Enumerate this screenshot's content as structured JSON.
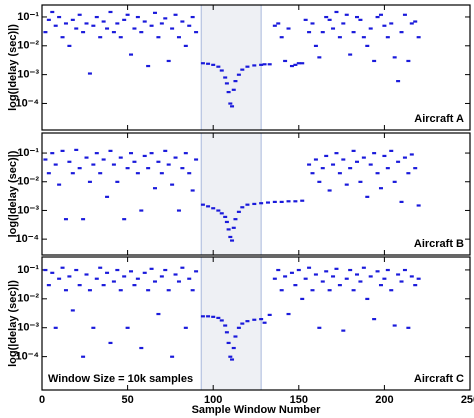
{
  "chart_data": [
    {
      "type": "scatter",
      "ylabel": "log(|delay (sec)|)",
      "annotation": "Aircraft A",
      "color": "#1a1adb",
      "log_y": true,
      "highlight": [
        93,
        128
      ],
      "xlim": [
        0,
        250
      ],
      "xticks": [
        0,
        50,
        100,
        150,
        200,
        250
      ],
      "ylim": [
        1.2e-05,
        0.26
      ],
      "yticks": [
        {
          "value": 0.1,
          "label": "10⁻¹"
        },
        {
          "value": 0.01,
          "label": "10⁻²"
        },
        {
          "value": 0.001,
          "label": "10⁻³"
        },
        {
          "value": 0.0001,
          "label": "10⁻⁴"
        }
      ],
      "x": [
        2,
        4,
        6,
        8,
        10,
        12,
        14,
        16,
        18,
        20,
        22,
        24,
        26,
        28,
        30,
        32,
        34,
        36,
        38,
        40,
        42,
        44,
        46,
        48,
        50,
        52,
        54,
        56,
        58,
        60,
        62,
        64,
        66,
        68,
        70,
        72,
        74,
        76,
        78,
        80,
        82,
        84,
        86,
        88,
        90,
        94,
        97,
        100,
        103,
        105,
        107,
        108,
        109,
        110,
        111,
        112,
        113,
        115,
        117,
        120,
        124,
        128,
        130,
        133,
        136,
        138,
        140,
        142,
        144,
        146,
        148,
        150,
        152,
        154,
        156,
        158,
        160,
        162,
        164,
        166,
        168,
        170,
        172,
        174,
        176,
        178,
        180,
        182,
        184,
        186,
        188,
        190,
        192,
        194,
        196,
        198,
        200,
        202,
        204,
        206,
        208,
        210,
        212,
        214,
        216,
        218,
        220
      ],
      "values": [
        0.03,
        0.08,
        0.15,
        0.05,
        0.1,
        0.02,
        0.06,
        0.01,
        0.08,
        0.04,
        0.12,
        0.03,
        0.06,
        0.0011,
        0.05,
        0.1,
        0.02,
        0.07,
        0.04,
        0.15,
        0.03,
        0.06,
        0.02,
        0.08,
        0.12,
        0.005,
        0.04,
        0.1,
        0.03,
        0.07,
        0.002,
        0.05,
        0.14,
        0.02,
        0.06,
        0.09,
        0.003,
        0.04,
        0.12,
        0.02,
        0.07,
        0.01,
        0.05,
        0.1,
        0.03,
        0.0025,
        0.0024,
        0.0022,
        0.0019,
        0.0014,
        0.0008,
        0.0005,
        0.00025,
        0.0001,
        8e-05,
        0.0003,
        0.0006,
        0.001,
        0.0015,
        0.0019,
        0.0021,
        0.0022,
        0.0023,
        0.0023,
        0.05,
        0.06,
        0.02,
        0.003,
        0.04,
        0.002,
        0.0022,
        0.0025,
        0.0025,
        0.08,
        0.03,
        0.06,
        0.01,
        0.004,
        0.03,
        0.1,
        0.08,
        0.04,
        0.15,
        0.02,
        0.06,
        0.12,
        0.005,
        0.03,
        0.1,
        0.08,
        0.02,
        0.01,
        0.04,
        0.003,
        0.1,
        0.12,
        0.05,
        0.02,
        0.06,
        0.004,
        0.0006,
        0.03,
        0.12,
        0.003,
        0.06,
        0.07,
        0.02
      ]
    },
    {
      "type": "scatter",
      "ylabel": "log(|delay (sec)|)",
      "annotation": "Aircraft B",
      "color": "#1a1adb",
      "log_y": true,
      "highlight": [
        93,
        128
      ],
      "xlim": [
        0,
        250
      ],
      "xticks": [
        0,
        50,
        100,
        150,
        200,
        250
      ],
      "ylim": [
        2.8e-05,
        0.5
      ],
      "yticks": [
        {
          "value": 0.1,
          "label": "10⁻¹"
        },
        {
          "value": 0.01,
          "label": "10⁻²"
        },
        {
          "value": 0.001,
          "label": "10⁻³"
        },
        {
          "value": 0.0001,
          "label": "10⁻⁴"
        }
      ],
      "x": [
        2,
        4,
        6,
        8,
        10,
        12,
        14,
        16,
        18,
        20,
        22,
        24,
        26,
        28,
        30,
        32,
        34,
        36,
        38,
        40,
        42,
        44,
        46,
        48,
        50,
        52,
        54,
        56,
        58,
        60,
        62,
        64,
        66,
        68,
        70,
        72,
        74,
        76,
        78,
        80,
        82,
        84,
        86,
        88,
        90,
        94,
        97,
        100,
        103,
        105,
        107,
        108,
        109,
        110,
        111,
        112,
        113,
        115,
        117,
        120,
        124,
        128,
        132,
        136,
        140,
        144,
        148,
        152,
        156,
        158,
        160,
        162,
        164,
        166,
        168,
        170,
        172,
        174,
        176,
        178,
        180,
        182,
        184,
        186,
        188,
        190,
        192,
        194,
        196,
        198,
        200,
        202,
        204,
        206,
        208,
        210,
        212,
        214,
        216,
        218,
        220
      ],
      "values": [
        0.06,
        0.02,
        0.1,
        0.04,
        0.008,
        0.12,
        0.0005,
        0.05,
        0.02,
        0.13,
        0.03,
        0.0005,
        0.07,
        0.01,
        0.04,
        0.1,
        0.02,
        0.06,
        0.003,
        0.12,
        0.04,
        0.01,
        0.07,
        0.0005,
        0.03,
        0.1,
        0.05,
        0.02,
        0.001,
        0.08,
        0.03,
        0.1,
        0.006,
        0.05,
        0.02,
        0.12,
        0.04,
        0.008,
        0.07,
        0.001,
        0.03,
        0.1,
        0.02,
        0.005,
        0.06,
        0.0016,
        0.0014,
        0.0012,
        0.001,
        0.0008,
        0.0006,
        0.0004,
        0.00022,
        0.00012,
        9e-05,
        0.00025,
        0.0005,
        0.0009,
        0.0013,
        0.0016,
        0.0017,
        0.0018,
        0.0019,
        0.002,
        0.002,
        0.0021,
        0.0021,
        0.0022,
        0.04,
        0.02,
        0.06,
        0.01,
        0.03,
        0.08,
        0.005,
        0.04,
        0.1,
        0.02,
        0.06,
        0.008,
        0.03,
        0.12,
        0.05,
        0.01,
        0.07,
        0.003,
        0.04,
        0.1,
        0.02,
        0.006,
        0.08,
        0.03,
        0.12,
        0.01,
        0.05,
        0.002,
        0.07,
        0.02,
        0.09,
        0.03,
        0.0015
      ]
    },
    {
      "type": "scatter",
      "ylabel": "log(|delay (sec)|)",
      "annotation": "Aircraft C",
      "note": "Window Size = 10k samples",
      "xlabel": "Sample Window Number",
      "color": "#1a1adb",
      "log_y": true,
      "highlight": [
        93,
        128
      ],
      "xlim": [
        0,
        250
      ],
      "xticks": [
        0,
        50,
        100,
        150,
        200,
        250
      ],
      "ylim": [
        7e-06,
        0.28
      ],
      "yticks": [
        {
          "value": 0.1,
          "label": "10⁻¹"
        },
        {
          "value": 0.01,
          "label": "10⁻²"
        },
        {
          "value": 0.001,
          "label": "10⁻³"
        },
        {
          "value": 0.0001,
          "label": "10⁻⁴"
        }
      ],
      "x": [
        2,
        4,
        6,
        8,
        10,
        12,
        14,
        16,
        18,
        20,
        22,
        24,
        26,
        28,
        30,
        32,
        34,
        36,
        38,
        40,
        42,
        44,
        46,
        48,
        50,
        52,
        54,
        56,
        58,
        60,
        62,
        64,
        66,
        68,
        70,
        72,
        74,
        76,
        78,
        80,
        82,
        84,
        86,
        88,
        90,
        94,
        97,
        100,
        103,
        105,
        107,
        108,
        109,
        110,
        111,
        112,
        113,
        115,
        117,
        120,
        124,
        128,
        130,
        133,
        136,
        138,
        140,
        142,
        144,
        146,
        148,
        150,
        152,
        154,
        156,
        158,
        160,
        162,
        164,
        166,
        168,
        170,
        172,
        174,
        176,
        178,
        180,
        182,
        184,
        186,
        188,
        190,
        192,
        194,
        196,
        198,
        200,
        202,
        204,
        206,
        208,
        210,
        212,
        214,
        216,
        218,
        220
      ],
      "values": [
        0.1,
        0.03,
        0.08,
        0.001,
        0.05,
        0.12,
        0.02,
        0.06,
        0.004,
        0.1,
        0.03,
        0.0001,
        0.07,
        0.02,
        0.001,
        0.05,
        0.12,
        0.03,
        0.08,
        0.0003,
        0.04,
        0.1,
        0.02,
        0.06,
        0.001,
        0.09,
        0.03,
        0.05,
        0.0002,
        0.08,
        0.02,
        0.11,
        0.04,
        0.003,
        0.06,
        0.1,
        0.02,
        0.0001,
        0.07,
        0.04,
        0.12,
        0.001,
        0.05,
        0.02,
        0.09,
        0.0025,
        0.0025,
        0.0024,
        0.0022,
        0.0018,
        0.0012,
        0.0007,
        0.0003,
        0.0001,
        8e-05,
        0.0002,
        0.0005,
        0.001,
        0.0014,
        0.0017,
        0.0019,
        0.002,
        0.0015,
        0.0028,
        0.05,
        0.1,
        0.02,
        0.06,
        0.003,
        0.08,
        0.03,
        0.1,
        0.01,
        0.05,
        0.12,
        0.02,
        0.07,
        0.001,
        0.04,
        0.09,
        0.02,
        0.06,
        0.11,
        0.03,
        0.0008,
        0.05,
        0.1,
        0.02,
        0.07,
        0.04,
        0.12,
        0.01,
        0.06,
        0.002,
        0.09,
        0.03,
        0.05,
        0.1,
        0.02,
        0.0012,
        0.07,
        0.04,
        0.1,
        0.001,
        0.06,
        0.03,
        0.05
      ]
    }
  ]
}
